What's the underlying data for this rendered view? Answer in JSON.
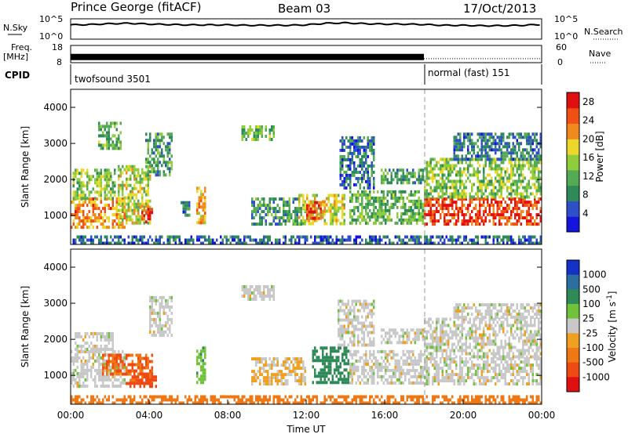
{
  "header": {
    "station": "Prince George (fitACF)",
    "beam": "Beam 03",
    "date": "17/Oct/2013"
  },
  "left_labels": {
    "nsky": "N.Sky",
    "freq": "Freq.",
    "mhz": "[MHz]",
    "cpid": "CPID"
  },
  "right_labels": {
    "nsearch": "N.Search",
    "nave": "Nave"
  },
  "colors": {
    "dark_blue": "#1414dc",
    "blue": "#2d50c8",
    "teal": "#2e8b57",
    "green": "#55aa55",
    "light_green": "#8fce3a",
    "yellow": "#ecd72a",
    "orange": "#f08a1e",
    "red_orange": "#f05014",
    "red": "#e01010",
    "grey": "#c8c8c8"
  },
  "chart_data": [
    {
      "type": "line",
      "name": "noise",
      "series": [
        {
          "name": "N.Sky",
          "style": "solid"
        },
        {
          "name": "N.Search",
          "style": "dotted"
        }
      ],
      "ylim": [
        1,
        100000
      ],
      "log_scale": true,
      "yticks": [
        "10^5",
        "10^0"
      ],
      "x_hours": [
        0,
        1,
        2,
        3,
        4,
        5,
        6,
        7,
        8,
        9,
        10,
        11,
        12,
        13,
        14,
        15,
        16,
        17,
        18,
        19,
        20,
        21,
        22,
        23,
        24
      ],
      "nsky_exponent": [
        3.5,
        3.6,
        3.8,
        3.9,
        3.7,
        3.6,
        3.5,
        3.5,
        3.5,
        3.4,
        3.4,
        3.4,
        3.5,
        3.9,
        4.0,
        3.8,
        3.7,
        3.7,
        3.6,
        3.4,
        3.4,
        3.3,
        3.3,
        3.4,
        3.6
      ]
    },
    {
      "type": "line",
      "name": "frequency_nave",
      "series": [
        {
          "name": "Freq.",
          "unit": "MHz",
          "style": "solid",
          "x_hours": [
            0,
            18
          ],
          "values": [
            11.3,
            11.3
          ]
        },
        {
          "name": "Nave",
          "style": "dotted",
          "x_hours": [
            18,
            24
          ],
          "values": [
            14,
            14
          ]
        }
      ],
      "left_ylim": [
        8,
        18
      ],
      "left_yticks": [
        "18",
        "8"
      ],
      "right_ylim": [
        0,
        60
      ],
      "right_yticks": [
        "60",
        "0"
      ]
    },
    {
      "type": "table",
      "name": "cpid",
      "segments": [
        {
          "label": "twofsound 3501",
          "start_hour": 0,
          "end_hour": 18
        },
        {
          "label": "normal (fast) 151",
          "start_hour": 18,
          "end_hour": 24
        }
      ]
    },
    {
      "type": "heatmap",
      "name": "power",
      "ylabel": "Slant Range [km]",
      "ylim": [
        200,
        4500
      ],
      "yticks": [
        1000,
        2000,
        3000,
        4000
      ],
      "colorbar_label": "Power [dB]",
      "colorbar_ticks": [
        4,
        8,
        12,
        16,
        20,
        24,
        28
      ],
      "colorbar_range": [
        0,
        30
      ],
      "colorbar_colors": [
        "#1414dc",
        "#2d50c8",
        "#2e8b57",
        "#55aa55",
        "#8fce3a",
        "#ecd72a",
        "#f08a1e",
        "#f05014",
        "#e01010"
      ],
      "echo_regions": [
        {
          "t0": 0.0,
          "t1": 2.8,
          "r0": 700,
          "r1": 1500,
          "level": 22
        },
        {
          "t0": 0.1,
          "t1": 2.3,
          "r0": 1500,
          "r1": 2300,
          "level": 14
        },
        {
          "t0": 2.4,
          "t1": 4.1,
          "r0": 800,
          "r1": 2400,
          "level": 16
        },
        {
          "t0": 3.6,
          "t1": 4.2,
          "r0": 800,
          "r1": 1300,
          "level": 26
        },
        {
          "t0": 3.8,
          "t1": 5.2,
          "r0": 2100,
          "r1": 3300,
          "level": 10
        },
        {
          "t0": 1.4,
          "t1": 2.6,
          "r0": 2900,
          "r1": 3600,
          "level": 12
        },
        {
          "t0": 5.6,
          "t1": 6.0,
          "r0": 1000,
          "r1": 1400,
          "level": 8
        },
        {
          "t0": 6.4,
          "t1": 6.9,
          "r0": 800,
          "r1": 1800,
          "level": 20
        },
        {
          "t0": 8.7,
          "t1": 10.4,
          "r0": 3100,
          "r1": 3500,
          "level": 12
        },
        {
          "t0": 9.2,
          "t1": 12.0,
          "r0": 800,
          "r1": 1500,
          "level": 9
        },
        {
          "t0": 11.6,
          "t1": 14.0,
          "r0": 800,
          "r1": 1600,
          "level": 17
        },
        {
          "t0": 12.0,
          "t1": 12.9,
          "r0": 900,
          "r1": 1400,
          "level": 25
        },
        {
          "t0": 13.7,
          "t1": 15.5,
          "r0": 1800,
          "r1": 3200,
          "level": 7
        },
        {
          "t0": 14.2,
          "t1": 18.0,
          "r0": 800,
          "r1": 1700,
          "level": 12
        },
        {
          "t0": 15.8,
          "t1": 18.0,
          "r0": 1900,
          "r1": 2300,
          "level": 11
        },
        {
          "t0": 18.0,
          "t1": 24.0,
          "r0": 800,
          "r1": 1500,
          "level": 26
        },
        {
          "t0": 18.0,
          "t1": 24.0,
          "r0": 1500,
          "r1": 2600,
          "level": 14
        },
        {
          "t0": 19.5,
          "t1": 24.0,
          "r0": 2600,
          "r1": 3300,
          "level": 8
        },
        {
          "t0": 0.0,
          "t1": 24.0,
          "r0": 200,
          "r1": 450,
          "level": 6
        }
      ]
    },
    {
      "type": "heatmap",
      "name": "velocity",
      "ylabel": "Slant Range [km]",
      "ylim": [
        200,
        4500
      ],
      "yticks": [
        1000,
        2000,
        3000,
        4000
      ],
      "xlabel": "Time UT",
      "xticks": [
        "00:00",
        "04:00",
        "08:00",
        "12:00",
        "16:00",
        "20:00",
        "00:00"
      ],
      "colorbar_label": "Velocity [m s^-1]",
      "colorbar_ticks": [
        "1000",
        "500",
        "100",
        "25",
        "-25",
        "-100",
        "-500",
        "-1000"
      ],
      "colorbar_colors": [
        "#1432c8",
        "#2d6ea0",
        "#2e8b57",
        "#6fc23a",
        "#c8c8c8",
        "#f0a020",
        "#f07814",
        "#f04a14",
        "#e01010"
      ],
      "echo_regions": [
        {
          "t0": 0.0,
          "t1": 2.8,
          "r0": 700,
          "r1": 1700,
          "vel": 0
        },
        {
          "t0": 0.2,
          "t1": 2.2,
          "r0": 1700,
          "r1": 2200,
          "vel": 0
        },
        {
          "t0": 1.6,
          "t1": 2.9,
          "r0": 1000,
          "r1": 1600,
          "vel": -300
        },
        {
          "t0": 2.8,
          "t1": 4.2,
          "r0": 800,
          "r1": 1600,
          "vel": -300
        },
        {
          "t0": 3.0,
          "t1": 4.4,
          "r0": 700,
          "r1": 1000,
          "vel": -600
        },
        {
          "t0": 4.0,
          "t1": 5.2,
          "r0": 2100,
          "r1": 3200,
          "vel": 0
        },
        {
          "t0": 6.4,
          "t1": 6.9,
          "r0": 800,
          "r1": 1800,
          "vel": 80
        },
        {
          "t0": 8.7,
          "t1": 10.4,
          "r0": 3100,
          "r1": 3500,
          "vel": 0
        },
        {
          "t0": 9.2,
          "t1": 12.0,
          "r0": 800,
          "r1": 1500,
          "vel": -30
        },
        {
          "t0": 12.3,
          "t1": 14.2,
          "r0": 800,
          "r1": 1800,
          "vel": 200
        },
        {
          "t0": 13.6,
          "t1": 15.5,
          "r0": 1800,
          "r1": 3100,
          "vel": 0
        },
        {
          "t0": 14.2,
          "t1": 18.0,
          "r0": 800,
          "r1": 1700,
          "vel": 0
        },
        {
          "t0": 15.8,
          "t1": 18.0,
          "r0": 1900,
          "r1": 2300,
          "vel": 0
        },
        {
          "t0": 18.0,
          "t1": 24.0,
          "r0": 800,
          "r1": 1500,
          "vel": 0
        },
        {
          "t0": 18.0,
          "t1": 24.0,
          "r0": 1500,
          "r1": 2600,
          "vel": 0
        },
        {
          "t0": 19.5,
          "t1": 24.0,
          "r0": 2600,
          "r1": 3000,
          "vel": 0
        },
        {
          "t0": 0.0,
          "t1": 24.0,
          "r0": 200,
          "r1": 450,
          "vel": -150
        }
      ]
    }
  ]
}
